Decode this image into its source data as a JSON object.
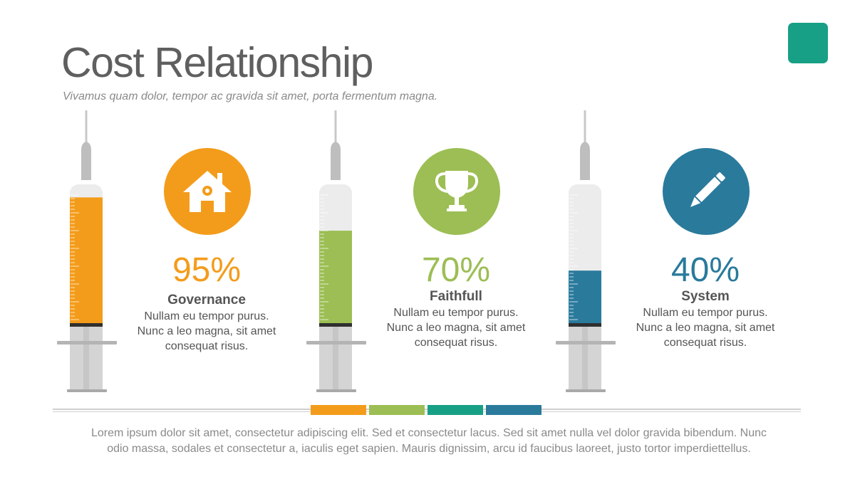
{
  "header": {
    "title": "Cost Relationship",
    "subtitle": "Vivamus quam dolor, tempor ac gravida sit amet, porta fermentum magna."
  },
  "colors": {
    "orange": "#f39c1b",
    "green": "#9cbe54",
    "teal": "#17a085",
    "blue": "#2a7a9c"
  },
  "items": [
    {
      "percent_label": "95%",
      "level": 0.95,
      "heading": "Governance",
      "body": [
        "Nullam eu tempor purus.",
        "Nunc a leo magna, sit amet",
        "consequat risus."
      ],
      "icon": "home-icon",
      "color": "#f39c1b"
    },
    {
      "percent_label": "70%",
      "level": 0.7,
      "heading": "Faithfull",
      "body": [
        "Nullam eu tempor purus.",
        "Nunc a leo magna, sit amet",
        "consequat risus."
      ],
      "icon": "trophy-icon",
      "color": "#9cbe54"
    },
    {
      "percent_label": "40%",
      "level": 0.4,
      "heading": "System",
      "body": [
        "Nullam eu tempor purus.",
        "Nunc a leo magna, sit amet",
        "consequat risus."
      ],
      "icon": "pencil-icon",
      "color": "#2a7a9c"
    }
  ],
  "legend_swatches": [
    "#f39c1b",
    "#9cbe54",
    "#17a085",
    "#2a7a9c"
  ],
  "footer": {
    "line1": "Lorem ipsum dolor sit amet, consectetur adipiscing elit. Sed et consectetur lacus. Sed sit amet nulla vel dolor gravida bibendum. Nunc",
    "line2": "odio massa, sodales et consectetur a, iaculis eget sapien. Mauris dignissim, arcu id faucibus laoreet, justo tortor imperdiettellus."
  }
}
